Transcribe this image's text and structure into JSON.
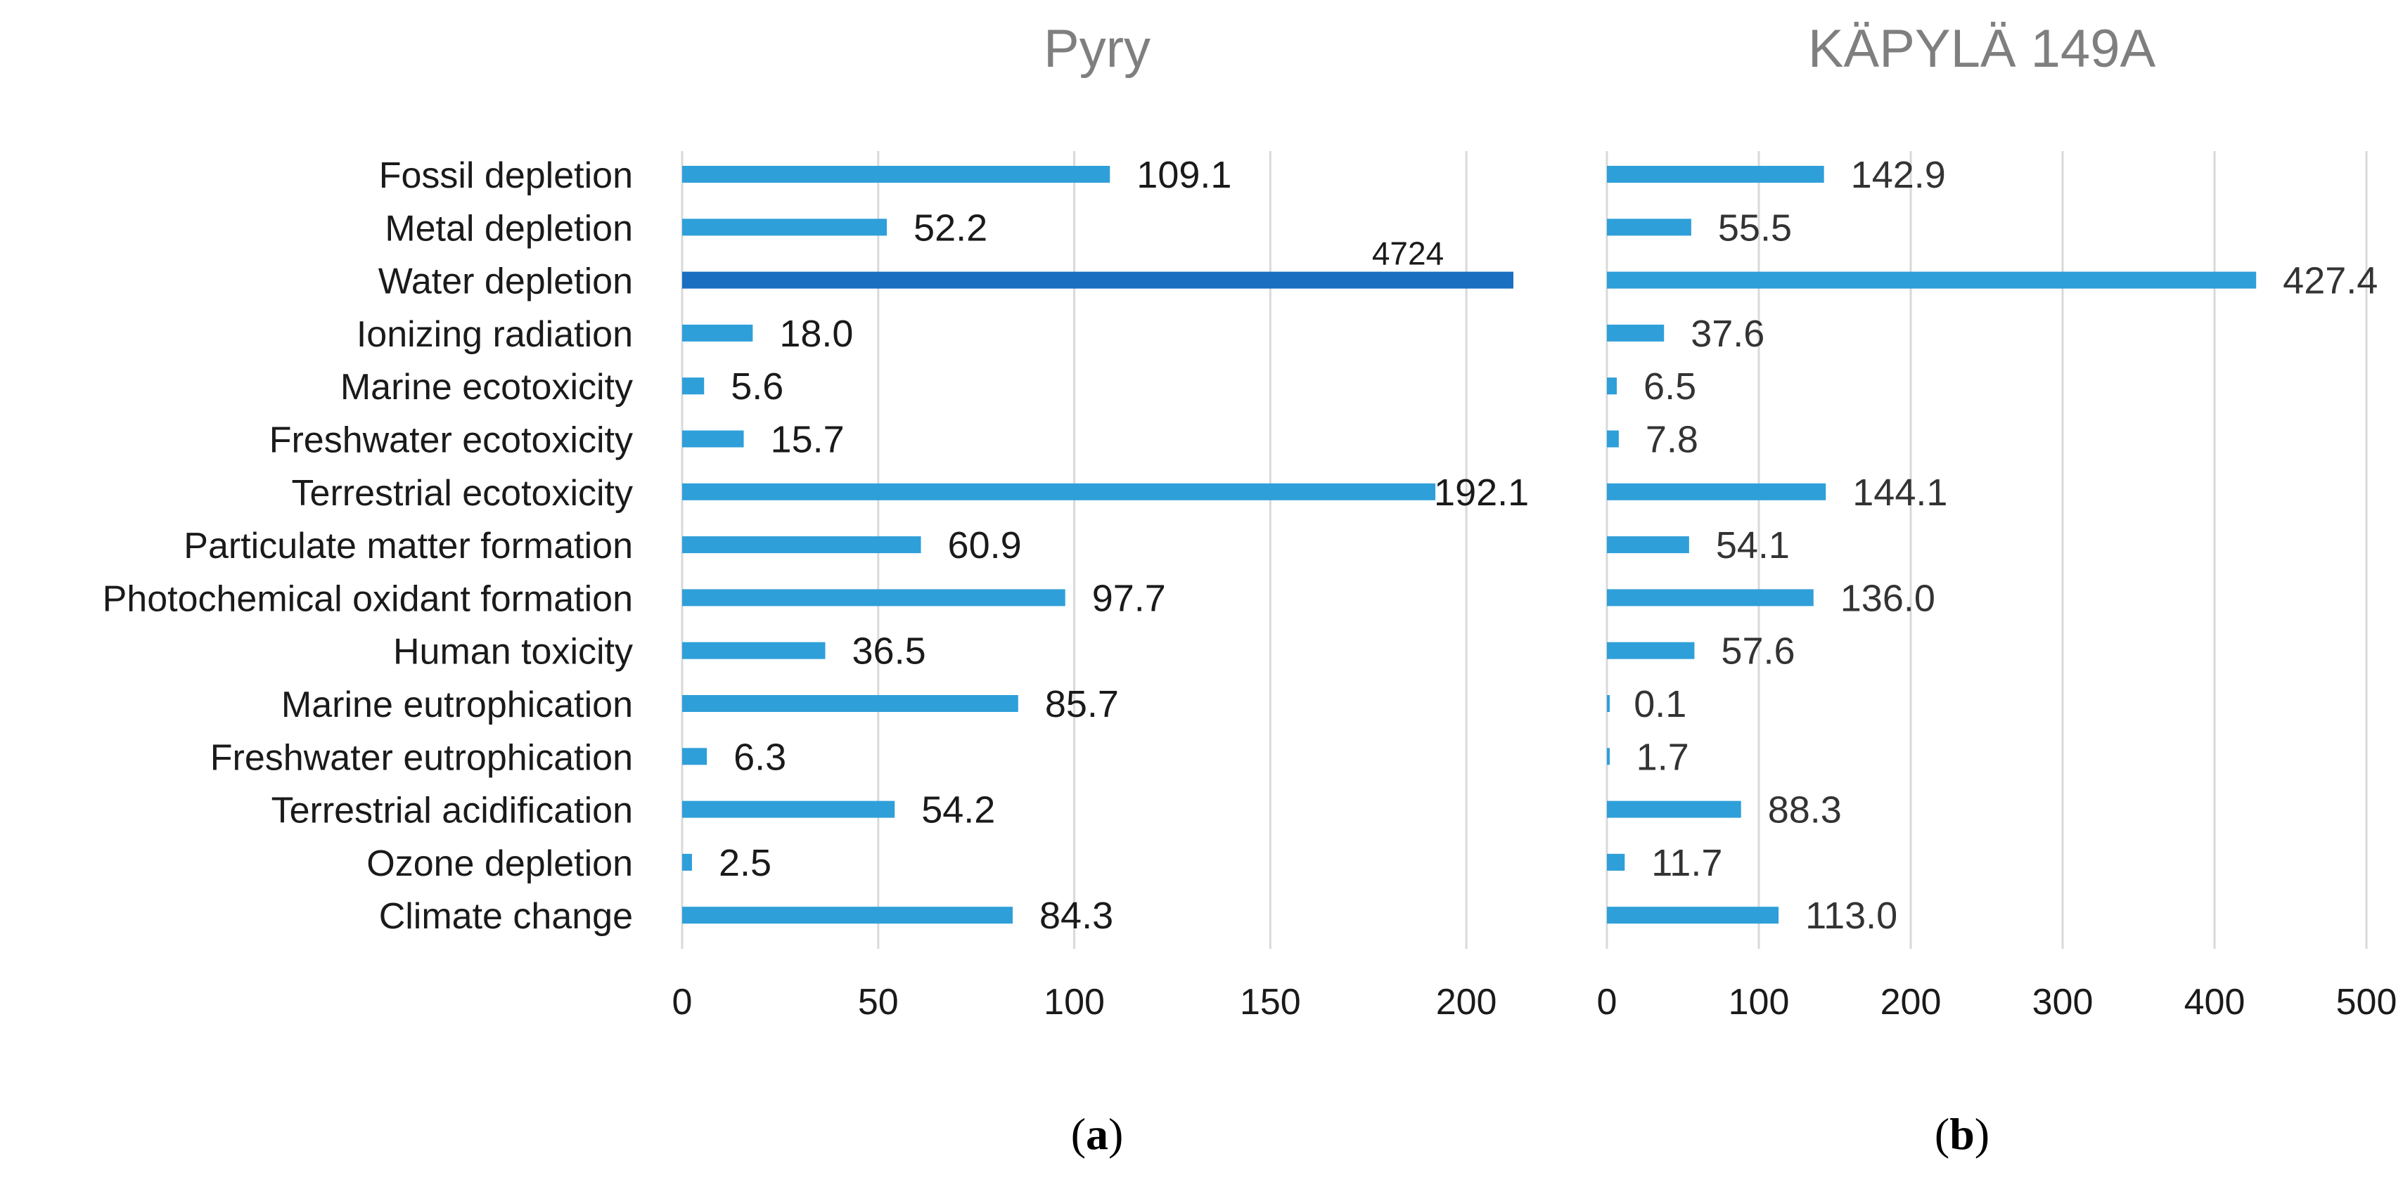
{
  "chart_data": [
    {
      "type": "bar",
      "orientation": "horizontal",
      "title": "Pyry",
      "caption_letter": "a",
      "categories": [
        "Fossil depletion",
        "Metal depletion",
        "Water depletion",
        "Ionizing radiation",
        "Marine ecotoxicity",
        "Freshwater ecotoxicity",
        "Terrestrial ecotoxicity",
        "Particulate matter formation",
        "Photochemical oxidant formation",
        "Human toxicity",
        "Marine eutrophication",
        "Freshwater eutrophication",
        "Terrestrial acidification",
        "Ozone depletion",
        "Climate change"
      ],
      "values": [
        109.1,
        52.2,
        4724,
        18.0,
        5.6,
        15.7,
        192.1,
        60.9,
        97.7,
        36.5,
        85.7,
        6.3,
        54.2,
        2.5,
        84.3
      ],
      "value_labels": [
        "109.1",
        "52.2",
        "4724",
        "18.0",
        "5.6",
        "15.7",
        "192.1",
        "60.9",
        "97.7",
        "36.5",
        "85.7",
        "6.3",
        "54.2",
        "2.5",
        "84.3"
      ],
      "xlim": [
        0,
        212
      ],
      "ticks": [
        0,
        50,
        100,
        150,
        200
      ],
      "tick_labels": [
        "0",
        "50",
        "100",
        "150",
        "200"
      ],
      "grid": true,
      "truncated_note": "Water depletion bar truncated at axis limit",
      "colors": {
        "bar": "#2e9fd9",
        "highlight": "#1a6fc1",
        "grid": "#d9d9d9",
        "title": "#7f7f7f"
      }
    },
    {
      "type": "bar",
      "orientation": "horizontal",
      "title": "KÄPYLÄ 149A",
      "caption_letter": "b",
      "categories": [
        "Fossil depletion",
        "Metal depletion",
        "Water depletion",
        "Ionizing radiation",
        "Marine ecotoxicity",
        "Freshwater ecotoxicity",
        "Terrestrial ecotoxicity",
        "Particulate matter formation",
        "Photochemical oxidant formation",
        "Human toxicity",
        "Marine eutrophication",
        "Freshwater eutrophication",
        "Terrestrial acidification",
        "Ozone depletion",
        "Climate change"
      ],
      "values": [
        142.9,
        55.5,
        427.4,
        37.6,
        6.5,
        7.8,
        144.1,
        54.1,
        136.0,
        57.6,
        0.1,
        1.7,
        88.3,
        11.7,
        113.0
      ],
      "value_labels": [
        "142.9",
        "55.5",
        "427.4",
        "37.6",
        "6.5",
        "7.8",
        "144.1",
        "54.1",
        "136.0",
        "57.6",
        "0.1",
        "1.7",
        "88.3",
        "11.7",
        "113.0"
      ],
      "xlim": [
        0,
        500
      ],
      "ticks": [
        0,
        100,
        200,
        300,
        400,
        500
      ],
      "tick_labels": [
        "0",
        "100",
        "200",
        "300",
        "400",
        "500"
      ],
      "grid": true,
      "colors": {
        "bar": "#2e9fd9",
        "grid": "#d9d9d9",
        "title": "#7f7f7f"
      }
    }
  ]
}
